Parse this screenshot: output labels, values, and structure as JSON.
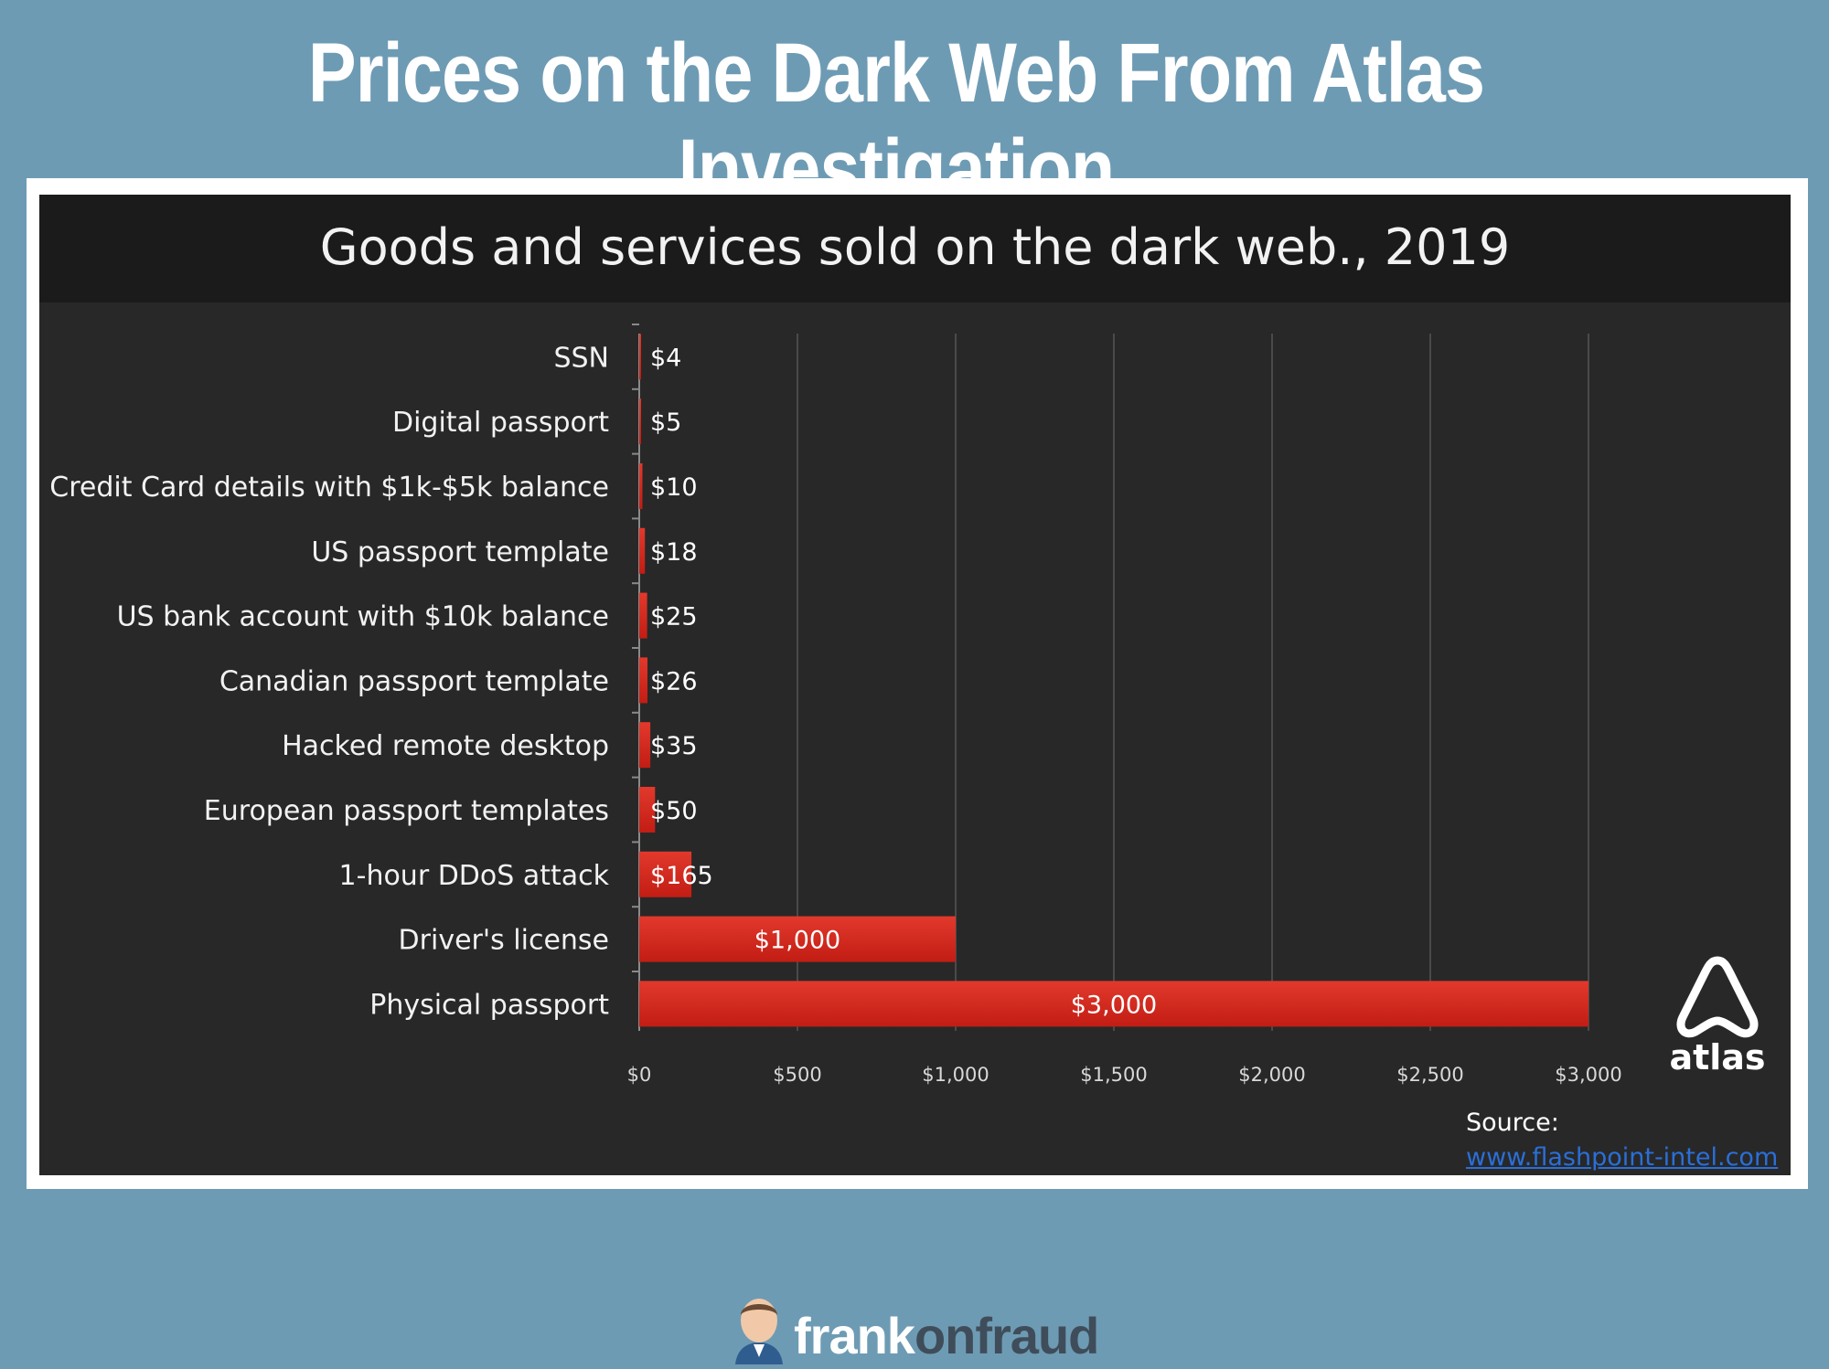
{
  "page": {
    "title": "Prices on the Dark Web From Atlas Investigation",
    "brand": {
      "part1": "frank",
      "part2": "onfraud"
    }
  },
  "source": {
    "label": "Source:",
    "link": "www.flashpoint-intel.com"
  },
  "logo": {
    "text": "atlas"
  },
  "colors": {
    "bar": "#d42a20",
    "background": "#6e9bb4",
    "panel": "#282828"
  },
  "chart_data": {
    "type": "bar",
    "orientation": "horizontal",
    "title": "Goods and services sold on the dark web., 2019",
    "categories": [
      "SSN",
      "Digital passport",
      "Credit Card details with $1k-$5k balance",
      "US passport template",
      "US bank account with $10k balance",
      "Canadian passport template",
      "Hacked remote desktop",
      "European passport templates",
      "1-hour DDoS attack",
      "Driver's license",
      "Physical passport"
    ],
    "values": [
      4,
      5,
      10,
      18,
      25,
      26,
      35,
      50,
      165,
      1000,
      3000
    ],
    "value_labels": [
      "$4",
      "$5",
      "$10",
      "$18",
      "$25",
      "$26",
      "$35",
      "$50",
      "$165",
      "$1,000",
      "$3,000"
    ],
    "xlim": [
      0,
      3000
    ],
    "ticks": [
      0,
      500,
      1000,
      1500,
      2000,
      2500,
      3000
    ],
    "tick_labels": [
      "$0",
      "$500",
      "$1,000",
      "$1,500",
      "$2,000",
      "$2,500",
      "$3,000"
    ],
    "grid": true,
    "xlabel": "",
    "ylabel": ""
  }
}
